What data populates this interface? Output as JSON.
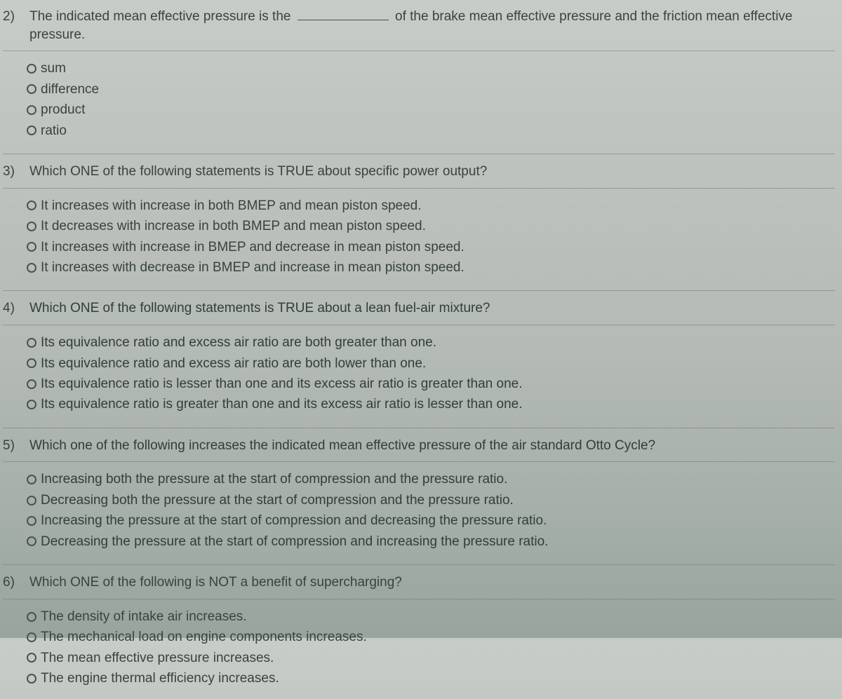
{
  "questions": [
    {
      "num": "2)",
      "prefix": "The indicated mean effective pressure is the ",
      "suffix": " of the brake mean effective pressure and the friction mean effective pressure.",
      "has_blank": true,
      "options": [
        "sum",
        "difference",
        "product",
        "ratio"
      ]
    },
    {
      "num": "3)",
      "text": "Which ONE of the following statements is TRUE about specific power output?",
      "options": [
        "It increases with increase in both BMEP and mean piston speed.",
        "It decreases with increase in both BMEP and mean piston speed.",
        "It increases with increase in BMEP and decrease in mean piston speed.",
        "It increases with decrease in BMEP and increase in mean piston speed."
      ]
    },
    {
      "num": "4)",
      "text": "Which ONE of the following statements is TRUE about a lean fuel-air mixture?",
      "options": [
        "Its equivalence ratio and excess air ratio are both greater than one.",
        "Its equivalence ratio and excess air ratio are both lower than one.",
        "Its equivalence ratio is lesser than one and its excess air ratio is greater than one.",
        "Its equivalence ratio is greater than one and its excess air ratio is lesser than one."
      ]
    },
    {
      "num": "5)",
      "text": "Which one of the following increases the indicated mean effective pressure of the air standard Otto Cycle?",
      "options": [
        "Increasing both the pressure at the start of compression and the pressure ratio.",
        "Decreasing both the pressure at the start of compression and the pressure ratio.",
        "Increasing the pressure at the start of compression and decreasing the pressure ratio.",
        "Decreasing the pressure at the start of compression and increasing the pressure ratio."
      ]
    },
    {
      "num": "6)",
      "text": "Which ONE of the following is NOT a benefit of supercharging?",
      "options": [
        "The density of intake air increases.",
        "The mechanical load on engine components increases.",
        "The mean effective pressure increases.",
        "The engine thermal efficiency increases."
      ]
    }
  ]
}
